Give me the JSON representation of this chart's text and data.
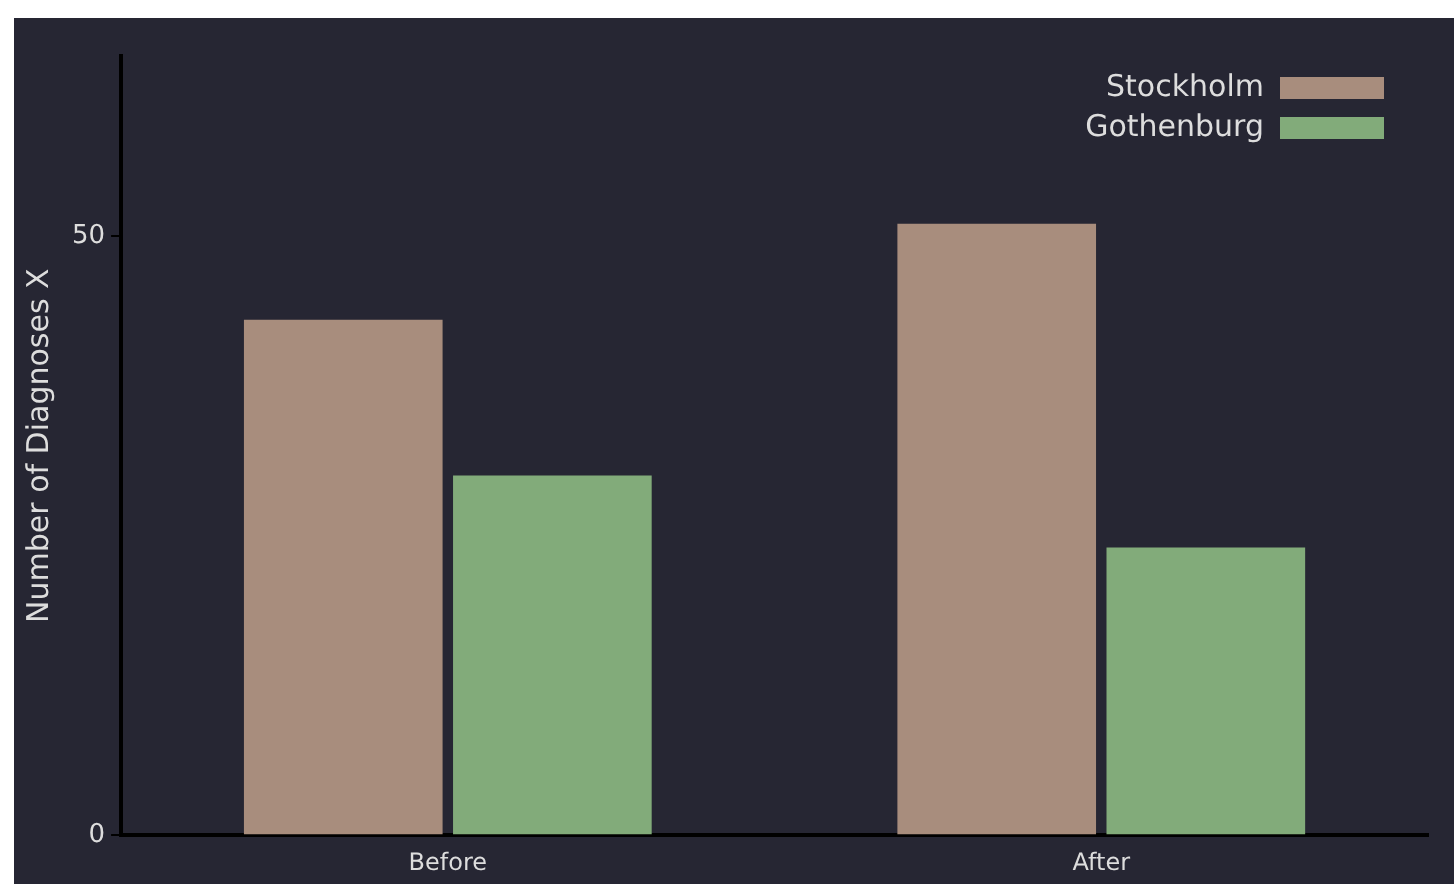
{
  "chart_data": {
    "type": "bar",
    "ylabel": "Number of Diagnoses X",
    "categories": [
      "Before",
      "After"
    ],
    "series": [
      {
        "name": "Stockholm",
        "color": "#a88d7d",
        "values": [
          43,
          51
        ]
      },
      {
        "name": "Gothenburg",
        "color": "#82ab7a",
        "values": [
          30,
          24
        ]
      }
    ],
    "ylim": [
      0,
      65
    ],
    "yticks": [
      0,
      50
    ],
    "grid": false,
    "legend": "top right"
  }
}
